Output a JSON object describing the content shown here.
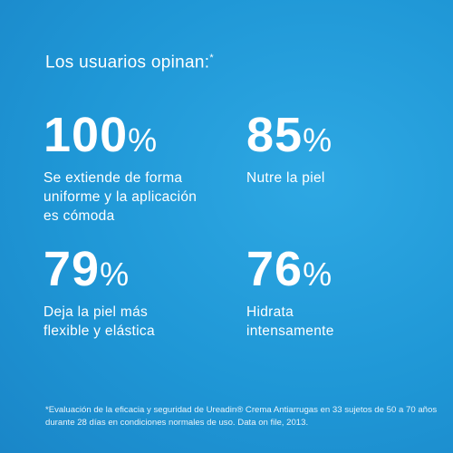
{
  "header": {
    "title": "Los usuarios opinan:",
    "title_mark": "*"
  },
  "stats": [
    {
      "number": "100",
      "unit": "%",
      "description": [
        "Se extiende de forma",
        "uniforme y la aplicación",
        "es cómoda"
      ]
    },
    {
      "number": "85",
      "unit": "%",
      "description": [
        "Nutre la piel"
      ]
    },
    {
      "number": "79",
      "unit": "%",
      "description": [
        "Deja la piel más",
        "flexible y elástica"
      ]
    },
    {
      "number": "76",
      "unit": "%",
      "description": [
        "Hidrata",
        "intensamente"
      ]
    }
  ],
  "footnote": [
    "*Evaluación de la eficacia y seguridad de Ureadin® Crema Antiarrugas en 33 sujetos de 50 a 70 años",
    "durante 28 días en condiciones normales de uso. Data on file, 2013."
  ]
}
